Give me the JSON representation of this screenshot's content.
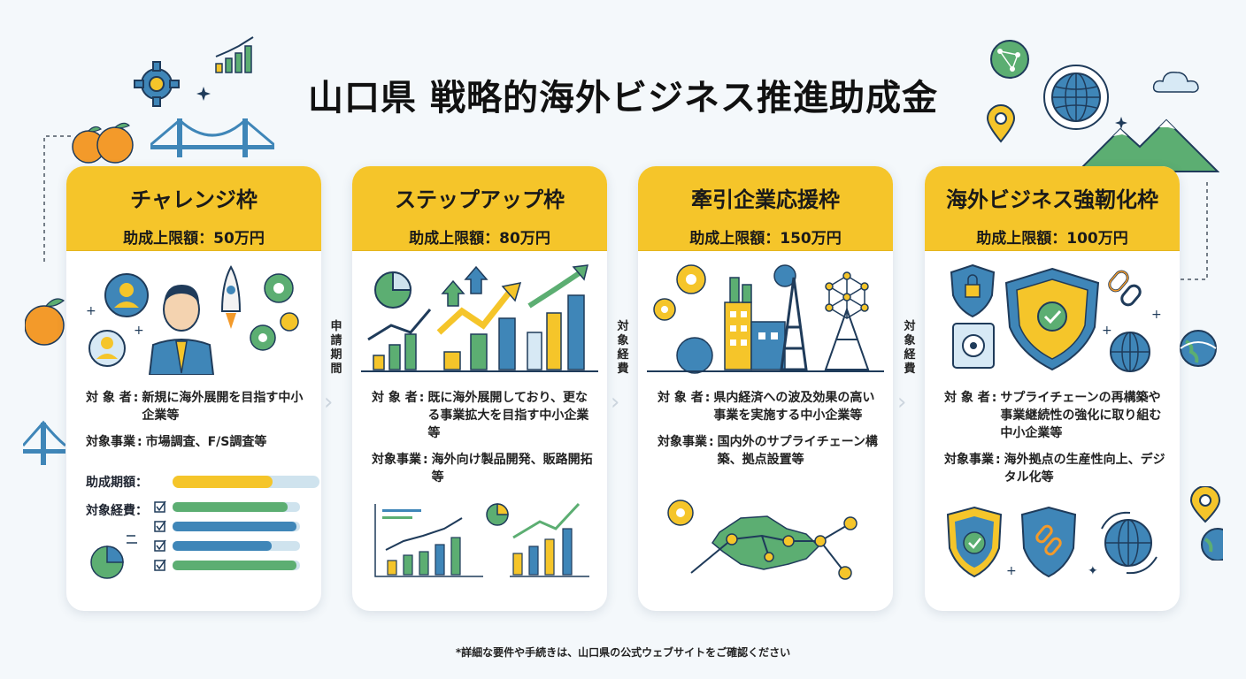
{
  "title": "山口県 戦略的海外ビジネス推進助成金",
  "footnote": "*詳細な要件や手続きは、山口県の公式ウェブサイトをご確認ください",
  "gap_labels": [
    "申請期間",
    "対象経費",
    "対象経費"
  ],
  "cards": [
    {
      "name": "チャレンジ枠",
      "limit": "助成上限額：50万円",
      "target_label": "対 象 者",
      "target": "新規に海外展開を目指す中小企業等",
      "business_label": "対象事業",
      "business": "市場調査、F/S調査等",
      "amount_label": "助成期額：",
      "amount_fill": 0.68,
      "expense_label": "対象経費："
    },
    {
      "name": "ステップアップ枠",
      "limit": "助成上限額：80万円",
      "target_label": "対 象 者",
      "target": "既に海外展開しており、更なる事業拡大を目指す中小企業等",
      "business_label": "対象事業",
      "business": "海外向け製品開発、販路開拓等"
    },
    {
      "name": "牽引企業応援枠",
      "limit": "助成上限額：150万円",
      "target_label": "対 象 者",
      "target": "県内経済への波及効果の高い事業を実施する中小企業等",
      "business_label": "対象事業",
      "business": "国内外のサプライチェーン構築、拠点設置等"
    },
    {
      "name": "海外ビジネス強靭化枠",
      "limit": "助成上限額：100万円",
      "target_label": "対 象 者",
      "target": "サプライチェーンの再構築や事業継続性の強化に取り組む中小企業等",
      "business_label": "対象事業",
      "business": "海外拠点の生産性向上、デジタル化等"
    }
  ],
  "colors": {
    "accent": "#f5c52a",
    "blue": "#3f86b8",
    "green": "#5cae72",
    "navy": "#1f3b5a"
  }
}
